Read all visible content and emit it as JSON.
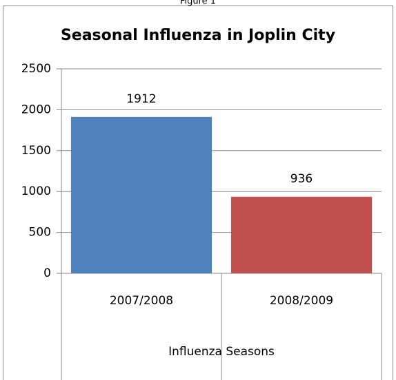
{
  "chart_data": {
    "type": "bar",
    "caption": "Figure 1",
    "title": "Seasonal Influenza in Joplin City",
    "x_label": "Influenza Seasons",
    "categories": [
      "2007/2008",
      "2008/2009"
    ],
    "values": [
      1912,
      936
    ],
    "colors": [
      "#4f81bd",
      "#c0504d"
    ],
    "ylim": [
      0,
      2500
    ],
    "yticks": [
      0,
      500,
      1000,
      1500,
      2000,
      2500
    ],
    "grid": true
  }
}
